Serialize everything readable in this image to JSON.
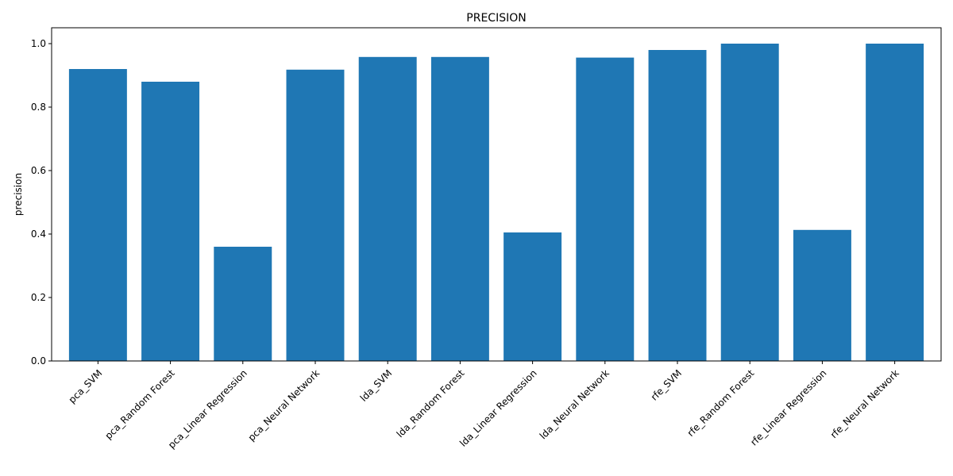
{
  "chart_data": {
    "type": "bar",
    "title": "PRECISION",
    "xlabel": "",
    "ylabel": "precision",
    "ylim": [
      0,
      1.05
    ],
    "yticks": [
      "0.0",
      "0.2",
      "0.4",
      "0.6",
      "0.8",
      "1.0"
    ],
    "ytick_values": [
      0,
      0.2,
      0.4,
      0.6,
      0.8,
      1.0
    ],
    "bar_color": "#1f77b4",
    "grid": false,
    "categories": [
      "pca_SVM",
      "pca_Random Forest",
      "pca_Linear Regression",
      "pca_Neural Network",
      "lda_SVM",
      "lda_Random Forest",
      "lda_Linear Regression",
      "lda_Neural Network",
      "rfe_SVM",
      "rfe_Random Forest",
      "rfe_Linear Regression",
      "rfe_Neural Network"
    ],
    "values": [
      0.92,
      0.88,
      0.36,
      0.918,
      0.958,
      0.958,
      0.405,
      0.956,
      0.98,
      1.0,
      0.413,
      1.0
    ]
  }
}
